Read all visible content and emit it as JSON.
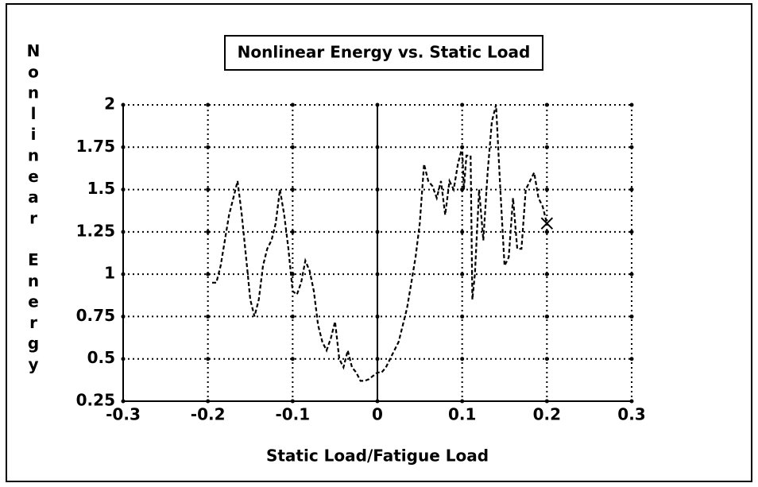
{
  "chart_data": {
    "type": "line",
    "title": "Nonlinear Energy vs. Static Load",
    "x_label": "Static Load/Fatigue Load",
    "y_label": "Nonlinear Energy",
    "color": "#000000",
    "grid": true,
    "xlim": [
      -0.3,
      0.3
    ],
    "ylim": [
      0.25,
      2
    ],
    "xticks": [
      -0.3,
      -0.2,
      -0.1,
      0,
      0.1,
      0.2,
      0.3
    ],
    "yticks": [
      0.25,
      0.5,
      0.75,
      1,
      1.25,
      1.5,
      1.75,
      2
    ],
    "x": [
      -0.195,
      -0.19,
      -0.185,
      -0.18,
      -0.175,
      -0.17,
      -0.165,
      -0.16,
      -0.155,
      -0.15,
      -0.145,
      -0.14,
      -0.135,
      -0.13,
      -0.125,
      -0.12,
      -0.115,
      -0.11,
      -0.105,
      -0.1,
      -0.095,
      -0.09,
      -0.085,
      -0.08,
      -0.075,
      -0.07,
      -0.065,
      -0.06,
      -0.055,
      -0.05,
      -0.045,
      -0.04,
      -0.035,
      -0.03,
      -0.025,
      -0.02,
      -0.015,
      -0.01,
      -0.005,
      0,
      0.005,
      0.01,
      0.015,
      0.02,
      0.025,
      0.03,
      0.035,
      0.04,
      0.045,
      0.05,
      0.055,
      0.06,
      0.065,
      0.07,
      0.075,
      0.08,
      0.085,
      0.09,
      0.095,
      0.1,
      0.102,
      0.105,
      0.11,
      0.112,
      0.115,
      0.12,
      0.125,
      0.13,
      0.135,
      0.14,
      0.145,
      0.15,
      0.155,
      0.16,
      0.165,
      0.17,
      0.175,
      0.18,
      0.185,
      0.19,
      0.195,
      0.2
    ],
    "values": [
      0.95,
      0.95,
      1.05,
      1.2,
      1.35,
      1.45,
      1.55,
      1.35,
      1.1,
      0.85,
      0.75,
      0.85,
      1.05,
      1.15,
      1.2,
      1.3,
      1.5,
      1.35,
      1.15,
      0.9,
      0.88,
      0.95,
      1.08,
      1.02,
      0.9,
      0.7,
      0.6,
      0.55,
      0.62,
      0.72,
      0.5,
      0.45,
      0.55,
      0.45,
      0.42,
      0.37,
      0.37,
      0.38,
      0.4,
      0.42,
      0.42,
      0.45,
      0.5,
      0.55,
      0.6,
      0.7,
      0.8,
      0.95,
      1.1,
      1.3,
      1.65,
      1.55,
      1.52,
      1.45,
      1.55,
      1.35,
      1.55,
      1.5,
      1.65,
      1.75,
      1.5,
      1.7,
      1.7,
      0.85,
      1.0,
      1.5,
      1.2,
      1.6,
      1.9,
      2.0,
      1.5,
      1.05,
      1.1,
      1.45,
      1.15,
      1.15,
      1.5,
      1.55,
      1.6,
      1.45,
      1.4,
      1.3
    ]
  }
}
